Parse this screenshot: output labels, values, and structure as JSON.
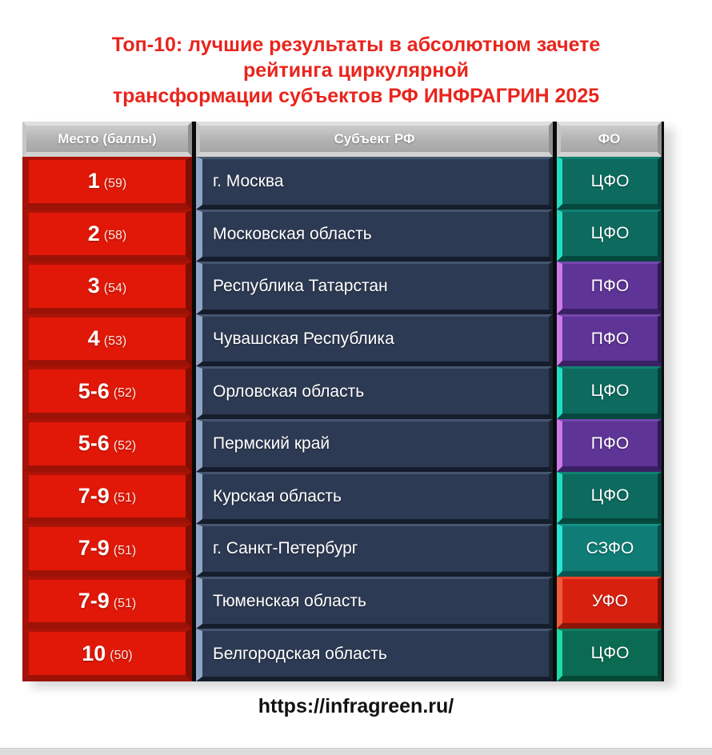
{
  "title": {
    "lines": [
      "Топ-10: лучшие результаты в абсолютном зачете",
      "рейтинга циркулярной",
      "трансформации субъектов РФ ИНФРАГРИН 2025"
    ],
    "color": "#e8251d"
  },
  "table": {
    "columns": [
      "Место (баллы)",
      "Субъект РФ",
      "ФО"
    ],
    "rows": [
      {
        "place": "1",
        "score": "(59)",
        "subject": "г. Москва",
        "fo": "ЦФО",
        "fo_class": "cfo"
      },
      {
        "place": "2",
        "score": "(58)",
        "subject": "Московская область",
        "fo": "ЦФО",
        "fo_class": "cfo"
      },
      {
        "place": "3",
        "score": "(54)",
        "subject": "Республика Татарстан",
        "fo": "ПФО",
        "fo_class": "pfo"
      },
      {
        "place": "4",
        "score": "(53)",
        "subject": "Чувашская Республика",
        "fo": "ПФО",
        "fo_class": "pfo"
      },
      {
        "place": "5-6",
        "score": "(52)",
        "subject": "Орловская область",
        "fo": "ЦФО",
        "fo_class": "cfo"
      },
      {
        "place": "5-6",
        "score": "(52)",
        "subject": "Пермский край",
        "fo": "ПФО",
        "fo_class": "pfo"
      },
      {
        "place": "7-9",
        "score": "(51)",
        "subject": "Курская область",
        "fo": "ЦФО",
        "fo_class": "cfo"
      },
      {
        "place": "7-9",
        "score": "(51)",
        "subject": "г. Санкт-Петербург",
        "fo": "СЗФО",
        "fo_class": "szfo"
      },
      {
        "place": "7-9",
        "score": "(51)",
        "subject": "Тюменская область",
        "fo": "УФО",
        "fo_class": "ufo"
      },
      {
        "place": "10",
        "score": "(50)",
        "subject": "Белгородская область",
        "fo": "ЦФО",
        "fo_class": "cfo2"
      }
    ]
  },
  "fo_colors": {
    "cfo": {
      "base": "#0c6b5e",
      "top": "#0f8173",
      "right": "#053f38",
      "bottom": "#06473e",
      "left": "#23dcc0"
    },
    "cfo2": {
      "base": "#0b6b52",
      "top": "#0e8165",
      "right": "#04402f",
      "bottom": "#054936",
      "left": "#1fd9a6"
    },
    "szfo": {
      "base": "#0f7d75",
      "top": "#129289",
      "right": "#064f49",
      "bottom": "#075650",
      "left": "#2ae4d4"
    },
    "pfo": {
      "base": "#5e3496",
      "top": "#7448ad",
      "right": "#2e1a52",
      "bottom": "#3a2064",
      "left": "#cb7bea"
    },
    "ufo": {
      "base": "#d8200f",
      "top": "#e8442a",
      "right": "#7a0e04",
      "bottom": "#8c1408",
      "left": "#ef5b3a"
    }
  },
  "footer": {
    "url": "https://infragreen.ru/"
  }
}
